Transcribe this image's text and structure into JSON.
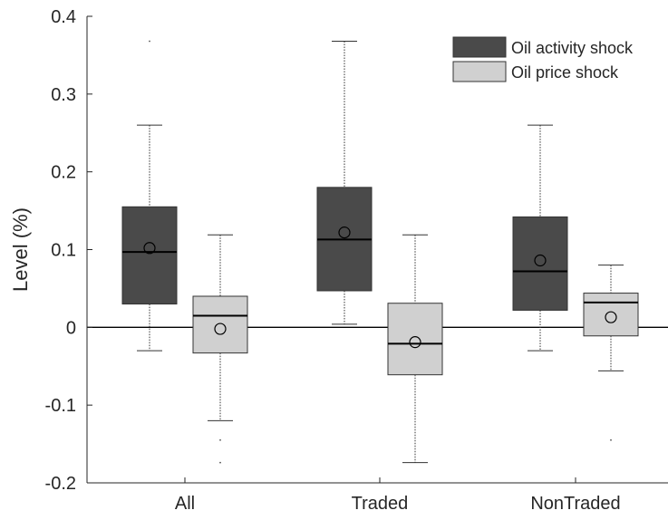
{
  "chart_data": {
    "type": "boxplot",
    "title": "",
    "xlabel": "",
    "ylabel": "Level (%)",
    "ylim": [
      -0.2,
      0.4
    ],
    "yticks": [
      -0.2,
      -0.1,
      0,
      0.1,
      0.2,
      0.3,
      0.4
    ],
    "ytick_labels": [
      "-0.2",
      "-0.1",
      "0",
      "0.1",
      "0.2",
      "0.3",
      "0.4"
    ],
    "categories": [
      "All",
      "Traded",
      "NonTraded"
    ],
    "zero_line": true,
    "grid": false,
    "legend_position": "top-right",
    "series": [
      {
        "name": "Oil activity shock",
        "color": "#4a4a4a",
        "boxes": [
          {
            "whisker_low": -0.03,
            "q1": 0.03,
            "median": 0.097,
            "q3": 0.155,
            "whisker_high": 0.26,
            "mean": 0.102,
            "outliers": [
              0.368
            ]
          },
          {
            "whisker_low": 0.004,
            "q1": 0.047,
            "median": 0.113,
            "q3": 0.18,
            "whisker_high": 0.368,
            "mean": 0.122,
            "outliers": []
          },
          {
            "whisker_low": -0.03,
            "q1": 0.022,
            "median": 0.072,
            "q3": 0.142,
            "whisker_high": 0.26,
            "mean": 0.086,
            "outliers": []
          }
        ]
      },
      {
        "name": "Oil price shock",
        "color": "#d0d0d0",
        "boxes": [
          {
            "whisker_low": -0.12,
            "q1": -0.033,
            "median": 0.015,
            "q3": 0.04,
            "whisker_high": 0.119,
            "mean": -0.002,
            "outliers": [
              -0.145,
              -0.174
            ]
          },
          {
            "whisker_low": -0.174,
            "q1": -0.061,
            "median": -0.021,
            "q3": 0.031,
            "whisker_high": 0.119,
            "mean": -0.019,
            "outliers": []
          },
          {
            "whisker_low": -0.056,
            "q1": -0.011,
            "median": 0.032,
            "q3": 0.044,
            "whisker_high": 0.08,
            "mean": 0.013,
            "outliers": [
              -0.145
            ]
          }
        ]
      }
    ]
  }
}
